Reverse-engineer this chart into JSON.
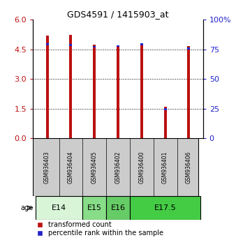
{
  "title": "GDS4591 / 1415903_at",
  "samples": [
    "GSM936403",
    "GSM936404",
    "GSM936405",
    "GSM936402",
    "GSM936400",
    "GSM936401",
    "GSM936406"
  ],
  "transformed_count": [
    5.2,
    5.22,
    4.73,
    4.68,
    4.82,
    1.58,
    4.65
  ],
  "percentile_rank_bottom": [
    4.72,
    4.68,
    4.58,
    4.62,
    4.72,
    1.42,
    4.5
  ],
  "percentile_rank_height": [
    0.1,
    0.1,
    0.1,
    0.1,
    0.1,
    0.1,
    0.1
  ],
  "age_groups": [
    {
      "label": "E14",
      "start": 0,
      "end": 2,
      "color": "#d8f5d8"
    },
    {
      "label": "E15",
      "start": 2,
      "end": 3,
      "color": "#88dd88"
    },
    {
      "label": "E16",
      "start": 3,
      "end": 4,
      "color": "#66cc66"
    },
    {
      "label": "E17.5",
      "start": 4,
      "end": 7,
      "color": "#44cc44"
    }
  ],
  "bar_color_red": "#bb1111",
  "bar_color_blue": "#2222cc",
  "bar_width": 0.12,
  "ylim_left": [
    0,
    6
  ],
  "ylim_right": [
    0,
    100
  ],
  "yticks_left": [
    0,
    1.5,
    3,
    4.5,
    6
  ],
  "yticks_right": [
    0,
    25,
    50,
    75,
    100
  ],
  "bg_color": "#ffffff",
  "label_red": "transformed count",
  "label_blue": "percentile rank within the sample"
}
